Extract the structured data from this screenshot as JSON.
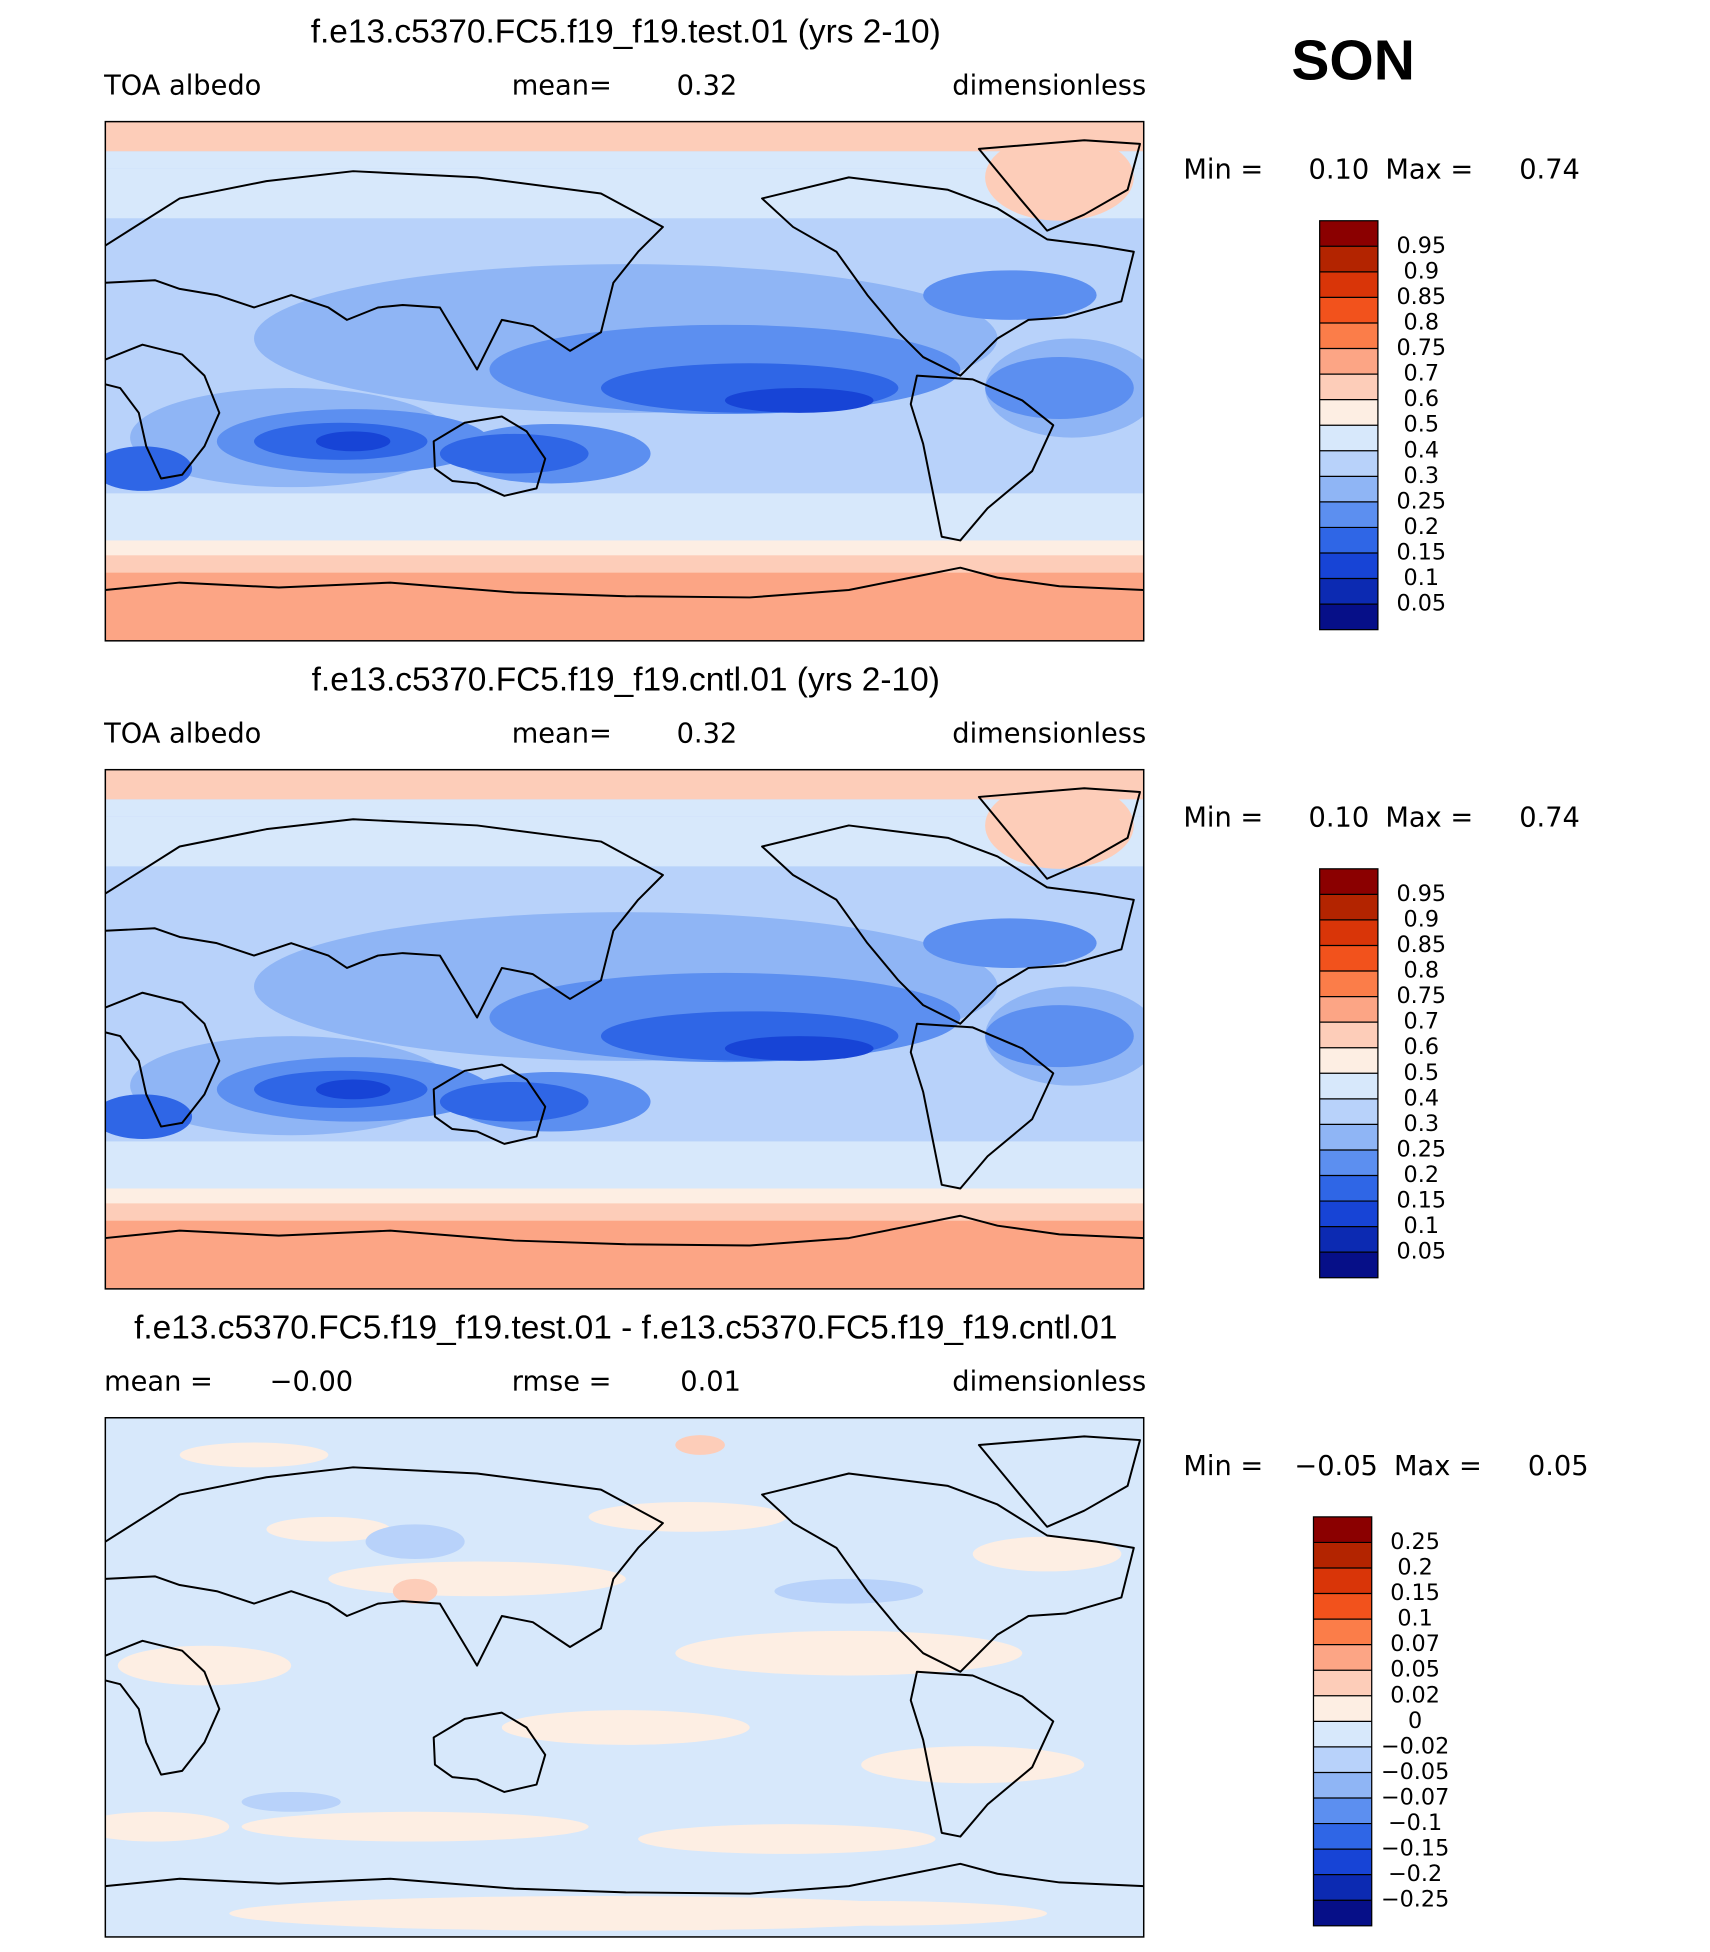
{
  "season": "SON",
  "chart_data": [
    {
      "type": "map",
      "title": "f.e13.c5370.FC5.f19_f19.test.01 (yrs 2-10)",
      "left_label": "TOA albedo",
      "center_label": "mean=",
      "center_value": "0.32",
      "right_label": "dimensionless",
      "min_label": "Min =",
      "min_value": "0.10",
      "max_label": "Max =",
      "max_value": "0.74",
      "levels": [
        0.95,
        0.9,
        0.85,
        0.8,
        0.75,
        0.7,
        0.6,
        0.5,
        0.4,
        0.3,
        0.25,
        0.2,
        0.15,
        0.1,
        0.05
      ],
      "colors": [
        "#8b0000",
        "#b32400",
        "#d93508",
        "#f2521c",
        "#fb7d49",
        "#fca585",
        "#fdcdb9",
        "#fdeee3",
        "#d7e8fb",
        "#b8d2fa",
        "#8fb5f5",
        "#5c8ff0",
        "#2f66e6",
        "#1744d6",
        "#0c2ab2",
        "#060f88"
      ]
    },
    {
      "type": "map",
      "title": "f.e13.c5370.FC5.f19_f19.cntl.01 (yrs 2-10)",
      "left_label": "TOA albedo",
      "center_label": "mean=",
      "center_value": "0.32",
      "right_label": "dimensionless",
      "min_label": "Min =",
      "min_value": "0.10",
      "max_label": "Max =",
      "max_value": "0.74",
      "levels": [
        0.95,
        0.9,
        0.85,
        0.8,
        0.75,
        0.7,
        0.6,
        0.5,
        0.4,
        0.3,
        0.25,
        0.2,
        0.15,
        0.1,
        0.05
      ],
      "colors": [
        "#8b0000",
        "#b32400",
        "#d93508",
        "#f2521c",
        "#fb7d49",
        "#fca585",
        "#fdcdb9",
        "#fdeee3",
        "#d7e8fb",
        "#b8d2fa",
        "#8fb5f5",
        "#5c8ff0",
        "#2f66e6",
        "#1744d6",
        "#0c2ab2",
        "#060f88"
      ]
    },
    {
      "type": "map",
      "title": "f.e13.c5370.FC5.f19_f19.test.01 - f.e13.c5370.FC5.f19_f19.cntl.01",
      "left_label": "mean =",
      "left_value": "−0.00",
      "center_label": "rmse =",
      "center_value": "0.01",
      "right_label": "dimensionless",
      "min_label": "Min =",
      "min_value": "−0.05",
      "max_label": "Max =",
      "max_value": "0.05",
      "levels": [
        0.25,
        0.2,
        0.15,
        0.1,
        0.07,
        0.05,
        0.02,
        0,
        {
          "value": -0.02,
          "label": "−0.02"
        },
        {
          "value": -0.05,
          "label": "−0.05"
        },
        {
          "value": -0.07,
          "label": "−0.07"
        },
        {
          "value": -0.1,
          "label": "−0.1"
        },
        {
          "value": -0.15,
          "label": "−0.15"
        },
        {
          "value": -0.2,
          "label": "−0.2"
        },
        {
          "value": -0.25,
          "label": "−0.25"
        }
      ],
      "colors": [
        "#8b0000",
        "#b32400",
        "#d93508",
        "#f2521c",
        "#fb7d49",
        "#fca585",
        "#fdcdb9",
        "#fdeee3",
        "#d7e8fb",
        "#b8d2fa",
        "#8fb5f5",
        "#5c8ff0",
        "#2f66e6",
        "#1744d6",
        "#0c2ab2",
        "#060f88"
      ]
    }
  ]
}
